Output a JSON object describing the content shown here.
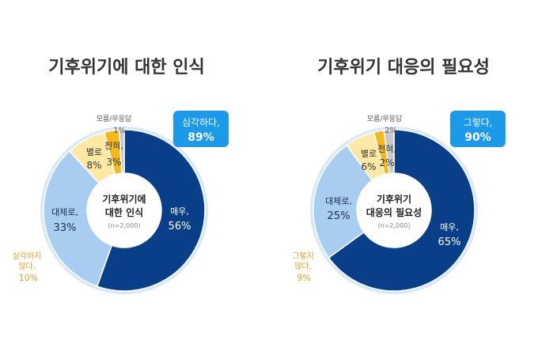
{
  "chart_data": [
    {
      "type": "pie",
      "title": "기후위기에 대한 인식",
      "center_label": [
        "기후위기에",
        "대한 인식"
      ],
      "center_note": "(n=2,000)",
      "slices": [
        {
          "label": "매우,",
          "value": 56,
          "display": "56%",
          "color": "#083f88"
        },
        {
          "label": "대체로,",
          "value": 33,
          "display": "33%",
          "color": "#a9cdf0"
        },
        {
          "label": "별로",
          "value": 8,
          "display": "8%",
          "color": "#fde9a4"
        },
        {
          "label": "전혀,",
          "value": 3,
          "display": "3%",
          "color": "#f3b81b"
        },
        {
          "label": "모름/무응답",
          "value": 1,
          "display": "1%",
          "color": "#c9c9c9"
        }
      ],
      "summary_positive": {
        "label": "심각하다,",
        "value": "89%"
      },
      "summary_negative": {
        "label_line1": "심각하지",
        "label_line2": "않다,",
        "value": "10%"
      }
    },
    {
      "type": "pie",
      "title": "기후위기 대응의 필요성",
      "center_label": [
        "기후위기",
        "대응의 필요성"
      ],
      "center_note": "(n=2,000)",
      "slices": [
        {
          "label": "매우,",
          "value": 65,
          "display": "65%",
          "color": "#083f88"
        },
        {
          "label": "대체로,",
          "value": 25,
          "display": "25%",
          "color": "#a9cdf0"
        },
        {
          "label": "별로",
          "value": 6,
          "display": "6%",
          "color": "#fde9a4"
        },
        {
          "label": "전혀,",
          "value": 2,
          "display": "2%",
          "color": "#f3b81b"
        },
        {
          "label": "모름/무응답",
          "value": 2,
          "display": "2%",
          "color": "#c9c9c9"
        }
      ],
      "summary_positive": {
        "label": "그렇다,",
        "value": "90%"
      },
      "summary_negative": {
        "label_line1": "그렇지",
        "label_line2": "않다,",
        "value": "9%"
      }
    }
  ],
  "colors": {
    "title": "#333333",
    "summary_box": "#1a9ae8",
    "negative_text": "#e0a020",
    "ring_halo": "#d6e9f8",
    "label_light": "#555555"
  }
}
